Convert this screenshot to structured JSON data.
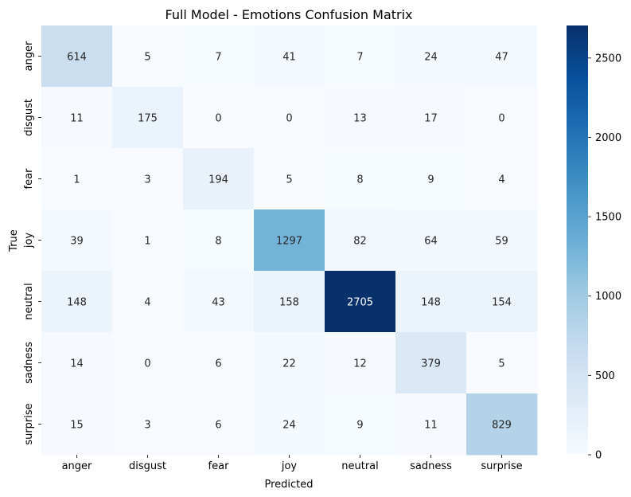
{
  "chart_data": {
    "type": "heatmap",
    "title": "Full Model - Emotions Confusion Matrix",
    "xlabel": "Predicted",
    "ylabel": "True",
    "x_categories": [
      "anger",
      "disgust",
      "fear",
      "joy",
      "neutral",
      "sadness",
      "surprise"
    ],
    "y_categories": [
      "anger",
      "disgust",
      "fear",
      "joy",
      "neutral",
      "sadness",
      "surprise"
    ],
    "values": [
      [
        614,
        5,
        7,
        41,
        7,
        24,
        47
      ],
      [
        11,
        175,
        0,
        0,
        13,
        17,
        0
      ],
      [
        1,
        3,
        194,
        5,
        8,
        9,
        4
      ],
      [
        39,
        1,
        8,
        1297,
        82,
        64,
        59
      ],
      [
        148,
        4,
        43,
        158,
        2705,
        148,
        154
      ],
      [
        14,
        0,
        6,
        22,
        12,
        379,
        5
      ],
      [
        15,
        3,
        6,
        24,
        9,
        11,
        829
      ]
    ],
    "colorbar": {
      "min": 0,
      "max": 2705,
      "ticks": [
        0,
        500,
        1000,
        1500,
        2000,
        2500
      ],
      "colormap": "Blues",
      "colors": [
        "#f7fbff",
        "#deebf7",
        "#c6dbef",
        "#9ecae1",
        "#6baed6",
        "#4292c6",
        "#2171b5",
        "#08519c",
        "#08306b"
      ]
    },
    "annotations": true,
    "grid": false
  }
}
